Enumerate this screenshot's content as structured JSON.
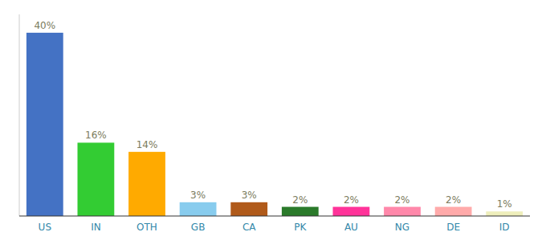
{
  "chart_data": {
    "type": "bar",
    "categories": [
      "US",
      "IN",
      "OTH",
      "GB",
      "CA",
      "PK",
      "AU",
      "NG",
      "DE",
      "ID"
    ],
    "values": [
      40,
      16,
      14,
      3,
      3,
      2,
      2,
      2,
      2,
      1
    ],
    "value_labels": [
      "40%",
      "16%",
      "14%",
      "3%",
      "3%",
      "2%",
      "2%",
      "2%",
      "2%",
      "1%"
    ],
    "colors": [
      "#4472c4",
      "#33cc33",
      "#ffaa00",
      "#88ccee",
      "#b05a1a",
      "#2a7a2a",
      "#ff3399",
      "#ff88aa",
      "#ffaaaa",
      "#eeeebb"
    ],
    "ylim": [
      0,
      44
    ],
    "data_labels": true,
    "tick_labels": "x",
    "grid": false
  }
}
